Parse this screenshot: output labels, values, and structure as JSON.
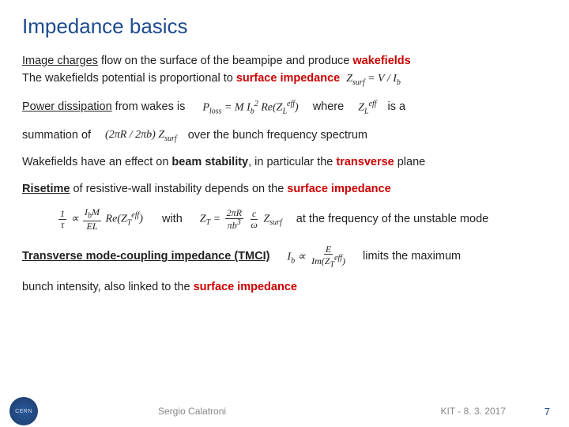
{
  "title": "Impedance basics",
  "p1a": "Image charges",
  "p1b": " flow on the surface of the beampipe and produce ",
  "p1c": "wakefields",
  "p2a": "The wakefields potential is proportional to ",
  "p2b": "surface impedance",
  "f_zsurf": "Z",
  "f_zsurf_sub": "surf",
  "f_vib": "= V / I",
  "f_vib_sub": "b",
  "p3a": "Power dissipation",
  "p3b": " from wakes is",
  "f_ploss": "P",
  "f_ploss_sub": "loss",
  "f_ploss_rhs1": "= M I",
  "f_ploss_rhs1_sub": "b",
  "f_ploss_sup2": "2",
  "f_ploss_re": " Re(Z",
  "f_ploss_re_sub": "L",
  "f_ploss_eff": "eff",
  "f_ploss_end": ")",
  "p3c": "where",
  "p3d": "is a",
  "p4a": "summation of",
  "f_sum": "(2πR / 2πb) Z",
  "f_sum_sub": "surf",
  "p4b": "over the bunch frequency spectrum",
  "p5a": "Wakefields have an effect on ",
  "p5b": "beam stability",
  "p5c": ", in particular the ",
  "p5d": "transverse",
  "p5e": " plane",
  "p6a": "Risetime",
  "p6b": " of resistive-wall instability depends on the ",
  "p6c": "surface impedance",
  "f_tau_lhs_num": "1",
  "f_tau_lhs_den": "τ",
  "f_tau_prop": " ∝ ",
  "f_tau_rhs_num": "I",
  "f_tau_rhs_num_sub": "b",
  "f_tau_rhs_num2": "M",
  "f_tau_rhs_den": "EL",
  "f_tau_re": " Re(Z",
  "f_tau_re_sub": "T",
  "f_tau_eff": "eff",
  "f_tau_end": ")",
  "p7a": "with",
  "f_zt": "Z",
  "f_zt_sub": "T",
  "f_zt_eq": " = ",
  "f_zt_num": "2πR",
  "f_zt_den1": "πb",
  "f_zt_den1_sup": "3",
  "f_zt_cw": "c",
  "f_zt_w": "ω",
  "f_zt_zsurf": " Z",
  "f_zt_zsurf_sub": "surf",
  "p7b": "at the frequency of the unstable mode",
  "p8a": "Transverse mode-coupling impedance (TMCI)",
  "f_ib": "I",
  "f_ib_sub": "b",
  "f_ib_prop": " ∝ ",
  "f_ib_num": "E",
  "f_ib_den": "Im(Z",
  "f_ib_den_sub": "T",
  "f_ib_den_eff": "eff",
  "f_ib_den_end": ")",
  "p8b": "limits the maximum",
  "p9": "bunch intensity, also linked to the ",
  "p9b": "surface impedance",
  "footer": {
    "logo": "CERN",
    "author": "Sergio Calatroni",
    "date": "KIT - 8. 3. 2017",
    "page": "7"
  },
  "colors": {
    "title": "#1e4b8f",
    "red": "#cc0000",
    "footer_text": "#888888",
    "page_num": "#1e4b8f"
  }
}
